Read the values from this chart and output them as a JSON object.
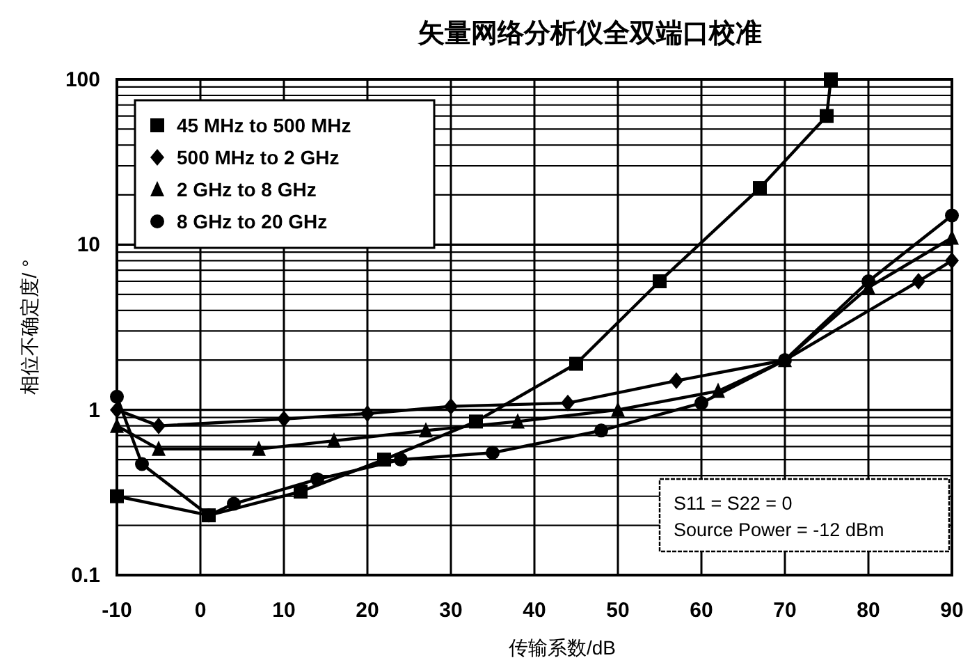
{
  "chart_data": {
    "type": "line",
    "title": "矢量网络分析仪全双端口校准",
    "xlabel": "传输系数/dB",
    "ylabel": "相位不确定度/ °",
    "xlim": [
      -10,
      90
    ],
    "xticks": [
      -10,
      0,
      10,
      20,
      30,
      40,
      50,
      60,
      70,
      80,
      90
    ],
    "ylim": [
      0.1,
      100
    ],
    "yticks": [
      0.1,
      1,
      10,
      100
    ],
    "log": "y",
    "grid": true,
    "legend": "top left",
    "annotations": [
      "S11 = S22 = 0",
      "Source Power = -12 dBm"
    ],
    "series": [
      {
        "name": "45 MHz to 500 MHz",
        "color": "#000000",
        "marker": "square",
        "x": [
          -10,
          1,
          12,
          22,
          33,
          45,
          55,
          67,
          75,
          75.5
        ],
        "values": [
          0.3,
          0.23,
          0.32,
          0.5,
          0.85,
          1.9,
          6,
          22,
          60,
          100
        ]
      },
      {
        "name": "500 MHz to 2 GHz",
        "color": "#000000",
        "marker": "diamond",
        "x": [
          -10,
          -5,
          10,
          20,
          30,
          44,
          57,
          70,
          86,
          90
        ],
        "values": [
          1.0,
          0.8,
          0.88,
          0.95,
          1.05,
          1.1,
          1.5,
          2,
          6,
          8
        ]
      },
      {
        "name": "2 GHz to 8 GHz",
        "color": "#000000",
        "marker": "triangle",
        "x": [
          -10,
          -5,
          7,
          16,
          27,
          38,
          50,
          62,
          70,
          80,
          90
        ],
        "values": [
          0.8,
          0.58,
          0.58,
          0.65,
          0.75,
          0.85,
          1.0,
          1.3,
          2,
          5.5,
          11
        ]
      },
      {
        "name": "8 GHz to 20 GHz",
        "color": "#000000",
        "marker": "circle",
        "x": [
          -10,
          -7,
          1,
          4,
          14,
          24,
          35,
          48,
          60,
          70,
          80,
          90
        ],
        "values": [
          1.2,
          0.47,
          0.23,
          0.27,
          0.38,
          0.5,
          0.55,
          0.75,
          1.1,
          2,
          6,
          15
        ]
      }
    ]
  }
}
